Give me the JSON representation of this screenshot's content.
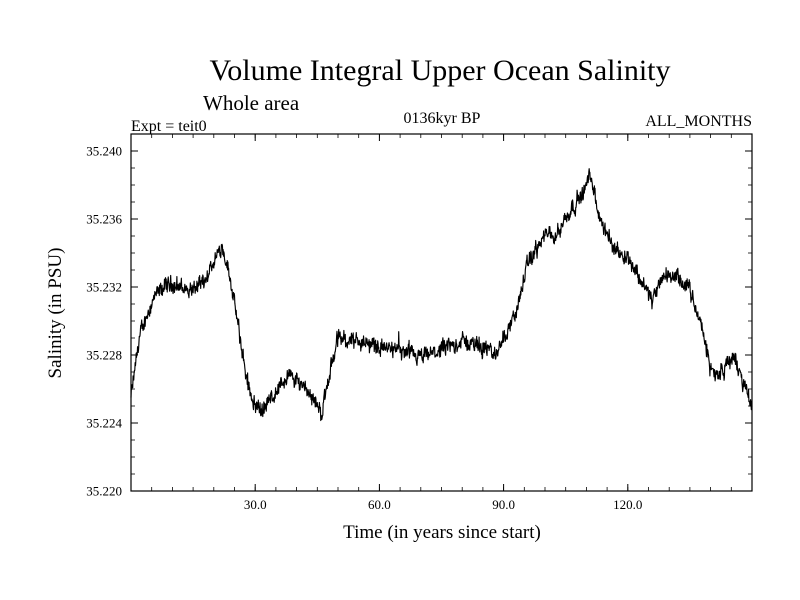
{
  "chart_data": {
    "type": "line",
    "title": "Volume Integral Upper Ocean Salinity",
    "subtitle": "Whole area",
    "expt_label": "Expt = teit0",
    "period_label": "0136kyr BP",
    "months_label": "ALL_MONTHS",
    "xlabel": "Time (in years since start)",
    "ylabel": "Salinity (in PSU)",
    "xlim": [
      0,
      150
    ],
    "ylim": [
      35.22,
      35.241
    ],
    "xticks": [
      30,
      60,
      90,
      120
    ],
    "xtick_labels": [
      "30.0",
      "60.0",
      "90.0",
      "120.0"
    ],
    "yticks": [
      35.22,
      35.224,
      35.228,
      35.232,
      35.236,
      35.24
    ],
    "ytick_labels": [
      "35.220",
      "35.224",
      "35.228",
      "35.232",
      "35.236",
      "35.240"
    ],
    "grid": false,
    "noise_amplitude": 0.0011,
    "series": [
      {
        "name": "Salinity",
        "x": [
          0,
          2,
          4,
          6,
          8,
          10,
          12,
          14,
          16,
          18,
          20,
          22,
          24,
          26,
          28,
          30,
          32,
          34,
          36,
          38,
          40,
          42,
          44,
          46,
          48,
          50,
          55,
          60,
          65,
          70,
          75,
          80,
          85,
          88,
          90,
          93,
          96,
          100,
          103,
          106,
          109,
          111,
          113,
          116,
          120,
          123,
          126,
          129,
          132,
          135,
          138,
          140,
          142,
          144,
          146,
          148,
          150
        ],
        "values": [
          35.2255,
          35.229,
          35.2305,
          35.2315,
          35.232,
          35.2322,
          35.232,
          35.2318,
          35.232,
          35.2322,
          35.2335,
          35.2345,
          35.2325,
          35.2295,
          35.2265,
          35.225,
          35.2248,
          35.2255,
          35.2262,
          35.2268,
          35.2265,
          35.2262,
          35.2255,
          35.2245,
          35.227,
          35.229,
          35.2288,
          35.2285,
          35.2282,
          35.2278,
          35.2283,
          35.2288,
          35.2285,
          35.228,
          35.229,
          35.2305,
          35.2335,
          35.235,
          35.2352,
          35.2365,
          35.2375,
          35.2385,
          35.2362,
          35.2345,
          35.2338,
          35.2325,
          35.2312,
          35.2328,
          35.2325,
          35.2318,
          35.2295,
          35.2272,
          35.2268,
          35.2275,
          35.2278,
          35.2262,
          35.225
        ]
      }
    ]
  }
}
